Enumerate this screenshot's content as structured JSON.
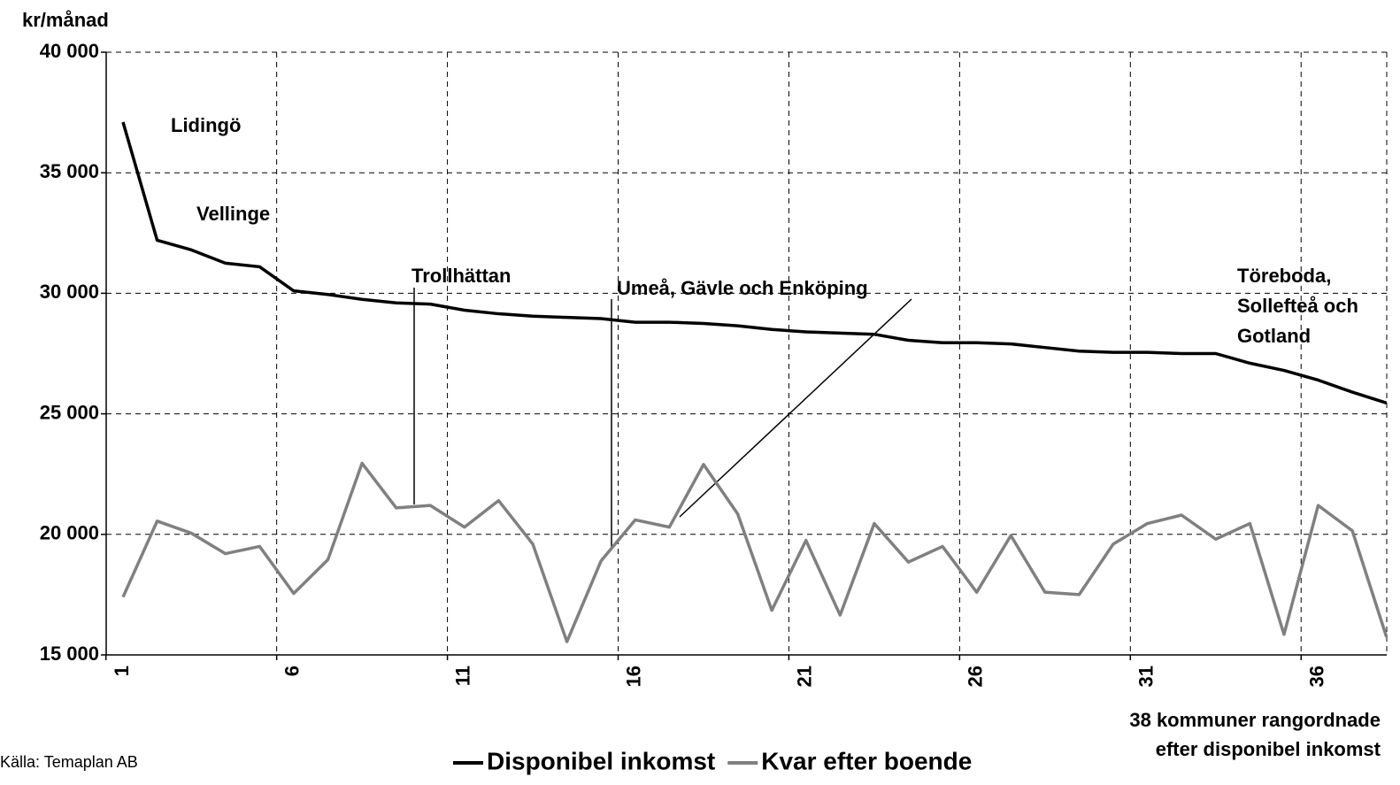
{
  "chart_data": {
    "type": "line",
    "ylabel": "kr/månad",
    "xlabel": [
      "38 kommuner rangordnade",
      "efter disponibel inkomst"
    ],
    "source": "Källa: Temaplan AB",
    "categories": [
      1,
      null,
      null,
      null,
      null,
      6,
      null,
      null,
      null,
      null,
      11,
      null,
      null,
      null,
      null,
      16,
      null,
      null,
      null,
      null,
      21,
      null,
      null,
      null,
      null,
      26,
      null,
      null,
      null,
      null,
      31,
      null,
      null,
      null,
      null,
      36,
      null,
      null
    ],
    "series": [
      {
        "name": "Disponibel inkomst",
        "color": "#000000",
        "values": [
          37100,
          32200,
          31800,
          31250,
          31100,
          30100,
          29950,
          29750,
          29600,
          29550,
          29300,
          29150,
          29050,
          29000,
          28950,
          28800,
          28800,
          28750,
          28650,
          28500,
          28400,
          28350,
          28300,
          28050,
          27950,
          27950,
          27900,
          27750,
          27600,
          27550,
          27550,
          27500,
          27500,
          27100,
          26800,
          26400,
          25900,
          25450
        ]
      },
      {
        "name": "Kvar efter boende",
        "color": "#808080",
        "values": [
          17400,
          20550,
          20050,
          19200,
          19500,
          17550,
          18950,
          22950,
          21100,
          21200,
          20300,
          21400,
          19600,
          15550,
          18900,
          20600,
          20300,
          22900,
          20850,
          16850,
          19750,
          16650,
          20450,
          18850,
          19500,
          17600,
          19950,
          17600,
          17500,
          19600,
          20450,
          20800,
          19800,
          20450,
          15850,
          21200,
          20150,
          15750
        ]
      }
    ],
    "ylim": [
      15000,
      40000
    ],
    "yticks": [
      {
        "value": 15000,
        "label": "15 000"
      },
      {
        "value": 20000,
        "label": "20 000"
      },
      {
        "value": 25000,
        "label": "25 000"
      },
      {
        "value": 30000,
        "label": "30 000"
      },
      {
        "value": 35000,
        "label": "35 000"
      },
      {
        "value": 40000,
        "label": "40 000"
      }
    ],
    "grid": true,
    "annotations": [
      [
        "Lidingö"
      ],
      [
        "Vellinge"
      ],
      [
        "Trollhättan"
      ],
      [
        "Umeå, Gävle och Enköping"
      ],
      [
        "Töreboda,",
        "Sollefteå och",
        "Gotland"
      ]
    ]
  }
}
